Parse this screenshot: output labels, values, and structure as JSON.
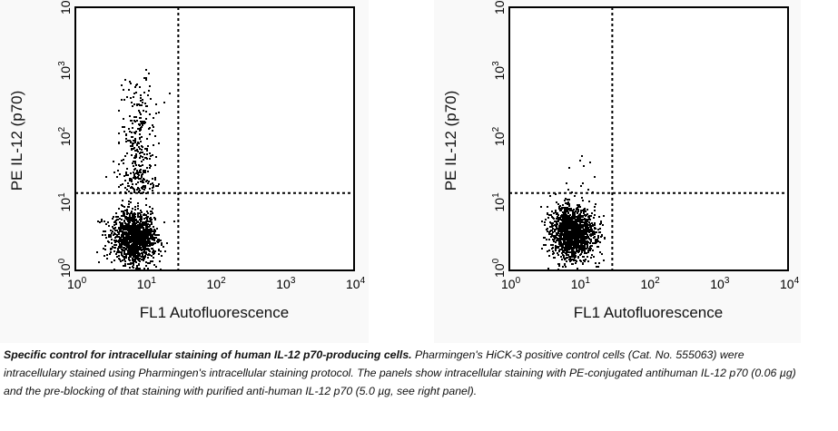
{
  "chart_data": [
    {
      "type": "scatter",
      "title": "",
      "xlabel": "FL1 Autofluorescence",
      "ylabel": "PE IL-12 (p70)",
      "xscale": "log",
      "yscale": "log",
      "xlim": [
        1,
        10000
      ],
      "ylim": [
        1,
        10000
      ],
      "xticks": [
        {
          "base": "10",
          "exp": "0"
        },
        {
          "base": "10",
          "exp": "1"
        },
        {
          "base": "10",
          "exp": "2"
        },
        {
          "base": "10",
          "exp": "3"
        },
        {
          "base": "10",
          "exp": "4"
        }
      ],
      "yticks": [
        {
          "base": "10",
          "exp": "0"
        },
        {
          "base": "10",
          "exp": "1"
        },
        {
          "base": "10",
          "exp": "2"
        },
        {
          "base": "10",
          "exp": "3"
        },
        {
          "base": "10",
          "exp": "4"
        }
      ],
      "quadrant_gates": {
        "x": 30,
        "y": 15
      },
      "population": {
        "center_x": 7,
        "center_y": 3.2,
        "positive_tail_max_y": 2000,
        "events": 1600,
        "positive_fraction": 0.2
      },
      "panel": "left"
    },
    {
      "type": "scatter",
      "title": "",
      "xlabel": "FL1 Autofluorescence",
      "ylabel": "PE IL-12 (p70)",
      "xscale": "log",
      "yscale": "log",
      "xlim": [
        1,
        10000
      ],
      "ylim": [
        1,
        10000
      ],
      "xticks": [
        {
          "base": "10",
          "exp": "0"
        },
        {
          "base": "10",
          "exp": "1"
        },
        {
          "base": "10",
          "exp": "2"
        },
        {
          "base": "10",
          "exp": "3"
        },
        {
          "base": "10",
          "exp": "4"
        }
      ],
      "yticks": [
        {
          "base": "10",
          "exp": "0"
        },
        {
          "base": "10",
          "exp": "1"
        },
        {
          "base": "10",
          "exp": "2"
        },
        {
          "base": "10",
          "exp": "3"
        },
        {
          "base": "10",
          "exp": "4"
        }
      ],
      "quadrant_gates": {
        "x": 30,
        "y": 15
      },
      "population": {
        "center_x": 8,
        "center_y": 3.8,
        "positive_tail_max_y": 40,
        "events": 1400,
        "positive_fraction": 0.005
      },
      "panel": "right"
    }
  ],
  "caption": {
    "bold": "Specific control for intracellular staining of human IL-12 p70-producing cells.",
    "text": " Pharmingen's HiCK-3 positive control cells (Cat. No. 555063) were intracellulary stained using Pharmingen's intracellular staining protocol.  The panels show intracellular staining with PE-conjugated antihuman IL-12 p70 (0.06 µg) and the pre-blocking of that staining with purified anti-human IL-12 p70 (5.0 µg, see right panel)."
  }
}
